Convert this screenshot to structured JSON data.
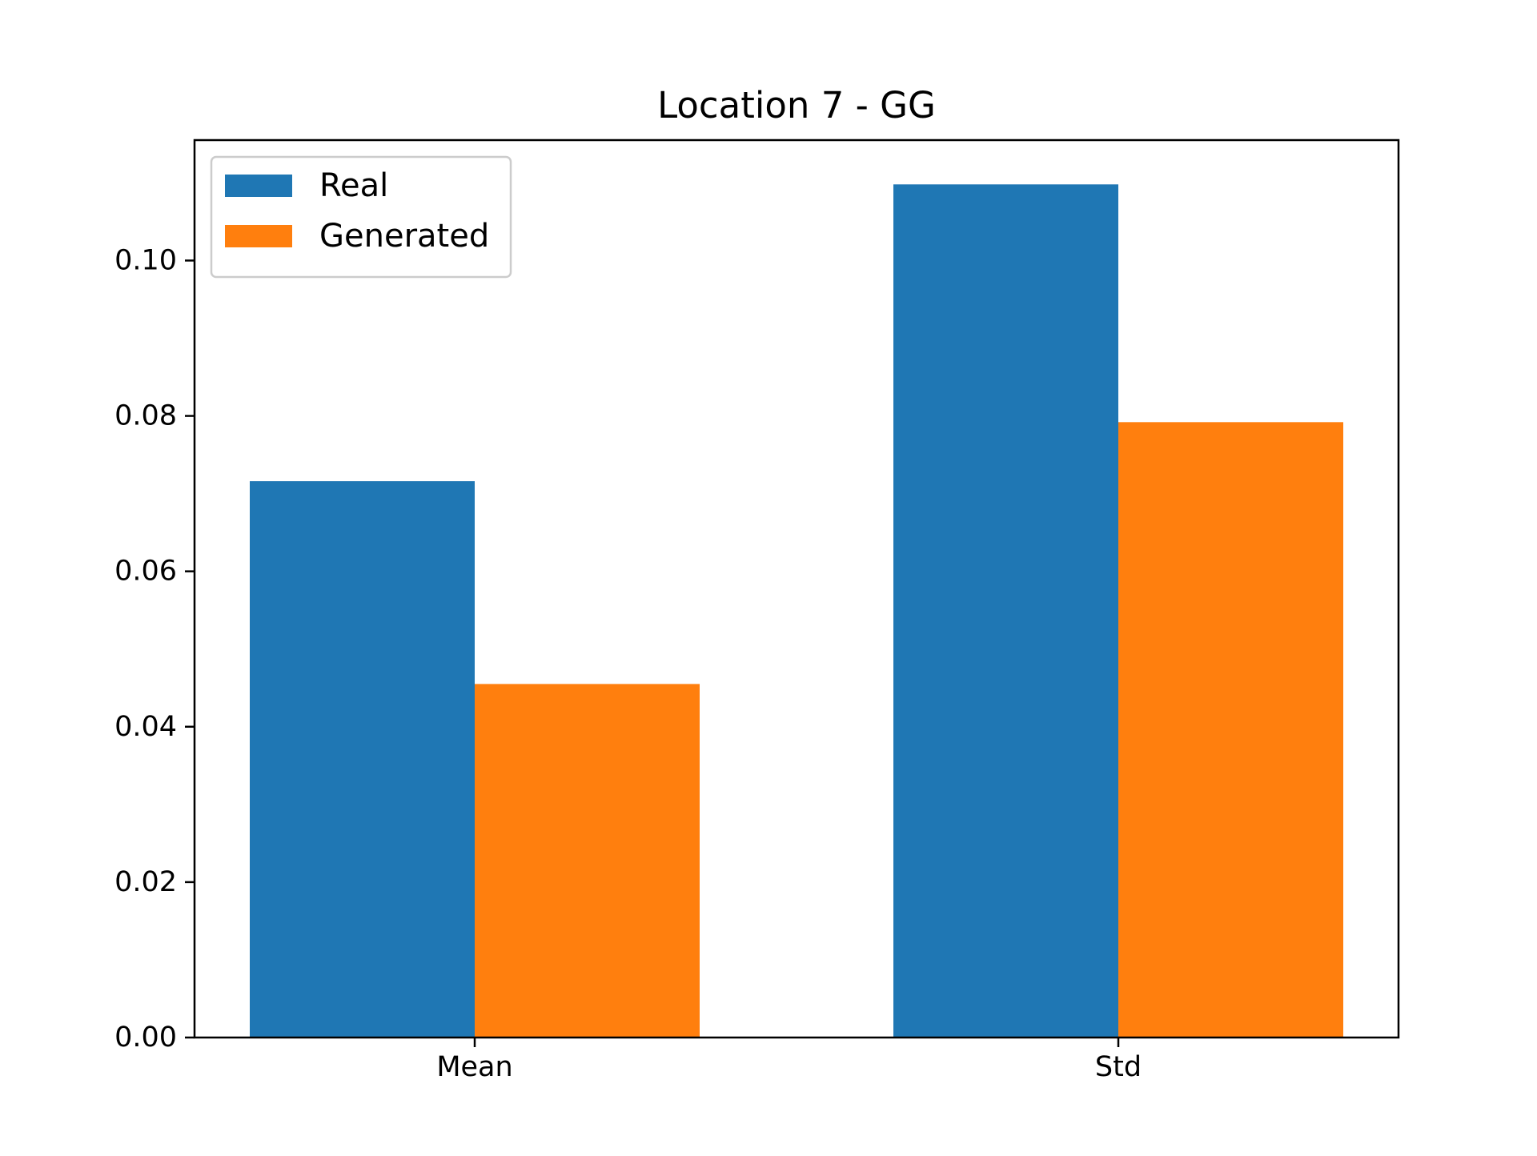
{
  "chart_data": {
    "type": "bar",
    "title": "Location 7 - GG",
    "xlabel": "",
    "ylabel": "",
    "categories": [
      "Mean",
      "Std"
    ],
    "series": [
      {
        "name": "Real",
        "color": "#1f77b4",
        "values": [
          0.0716,
          0.1098
        ]
      },
      {
        "name": "Generated",
        "color": "#ff7f0e",
        "values": [
          0.0455,
          0.0792
        ]
      }
    ],
    "ylim": [
      0,
      0.1155
    ],
    "yticks": [
      0.0,
      0.02,
      0.04,
      0.06,
      0.08,
      0.1
    ],
    "ytick_labels": [
      "0.00",
      "0.02",
      "0.04",
      "0.06",
      "0.08",
      "0.10"
    ],
    "legend_position": "top-left",
    "grid": false
  }
}
